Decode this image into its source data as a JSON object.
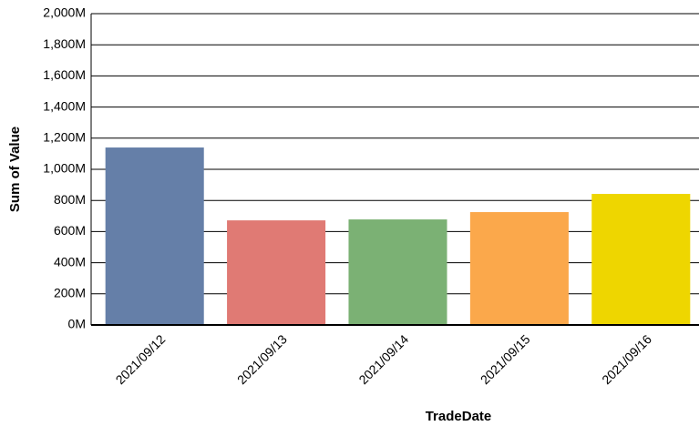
{
  "chart_data": {
    "type": "bar",
    "x_label": "TradeDate",
    "y_label": "Sum of Value",
    "categories": [
      "2021/09/12",
      "2021/09/13",
      "2021/09/14",
      "2021/09/15",
      "2021/09/16"
    ],
    "values": [
      1140,
      672,
      678,
      725,
      842
    ],
    "colors": [
      "#657fa8",
      "#e07a74",
      "#7bb174",
      "#fba84b",
      "#eed600"
    ],
    "ylim": [
      0,
      2000
    ],
    "yticks": [
      {
        "value": 0,
        "label": "0M"
      },
      {
        "value": 200,
        "label": "200M"
      },
      {
        "value": 400,
        "label": "400M"
      },
      {
        "value": 600,
        "label": "600M"
      },
      {
        "value": 800,
        "label": "800M"
      },
      {
        "value": 1000,
        "label": "1,000M"
      },
      {
        "value": 1200,
        "label": "1,200M"
      },
      {
        "value": 1400,
        "label": "1,400M"
      },
      {
        "value": 1600,
        "label": "1,600M"
      },
      {
        "value": 1800,
        "label": "1,800M"
      },
      {
        "value": 2000,
        "label": "2,000M"
      }
    ],
    "grid": true
  }
}
